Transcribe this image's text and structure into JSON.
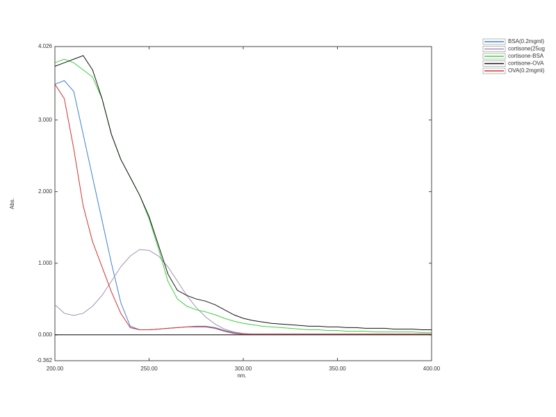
{
  "chart_data": {
    "type": "line",
    "x_label": "nm.",
    "y_label": "Abs.",
    "xlim": [
      200,
      400
    ],
    "ylim": [
      -0.362,
      4.026
    ],
    "xticks": [
      {
        "value": 200,
        "label": "200.00"
      },
      {
        "value": 250,
        "label": "250.00"
      },
      {
        "value": 300,
        "label": "300.00"
      },
      {
        "value": 350,
        "label": "350.00"
      },
      {
        "value": 400,
        "label": "400.00"
      }
    ],
    "yticks": [
      {
        "value": -0.362,
        "label": "-0.362"
      },
      {
        "value": 0,
        "label": "0.000"
      },
      {
        "value": 1,
        "label": "1.000"
      },
      {
        "value": 2,
        "label": "2.000"
      },
      {
        "value": 3,
        "label": "3.000"
      },
      {
        "value": 4.026,
        "label": "4.026"
      }
    ],
    "zero_line": true,
    "grid": false,
    "legend": "outside-top-right",
    "x": [
      200,
      205,
      210,
      215,
      220,
      225,
      230,
      235,
      240,
      245,
      250,
      255,
      260,
      265,
      270,
      275,
      280,
      285,
      290,
      295,
      300,
      305,
      310,
      315,
      320,
      325,
      330,
      335,
      340,
      345,
      350,
      355,
      360,
      365,
      370,
      375,
      380,
      385,
      390,
      395,
      400
    ],
    "series": [
      {
        "name": "BSA(0.2mgml)",
        "color": "#3a7fd0",
        "values": [
          3.5,
          3.55,
          3.4,
          2.8,
          2.2,
          1.6,
          1.0,
          0.45,
          0.12,
          0.07,
          0.07,
          0.08,
          0.09,
          0.1,
          0.11,
          0.12,
          0.12,
          0.1,
          0.06,
          0.03,
          0.01,
          0.01,
          0.01,
          0.01,
          0.01,
          0.01,
          0.01,
          0.01,
          0.01,
          0.01,
          0.01,
          0.01,
          0.01,
          0.01,
          0.01,
          0.01,
          0.01,
          0.01,
          0.01,
          0.01,
          0.01
        ]
      },
      {
        "name": "cortisone(25ug",
        "color": "#a090b0",
        "values": [
          0.42,
          0.3,
          0.27,
          0.3,
          0.4,
          0.55,
          0.75,
          0.95,
          1.1,
          1.19,
          1.18,
          1.1,
          0.95,
          0.75,
          0.55,
          0.38,
          0.25,
          0.15,
          0.08,
          0.04,
          0.02,
          0.01,
          0.01,
          0.01,
          0.01,
          0.01,
          0.01,
          0.01,
          0.01,
          0.01,
          0.01,
          0.01,
          0.01,
          0.01,
          0.01,
          0.01,
          0.01,
          0.01,
          0.01,
          0.01,
          0.01
        ]
      },
      {
        "name": "cortisone-BSA",
        "color": "#3ad03a",
        "values": [
          3.8,
          3.85,
          3.8,
          3.7,
          3.6,
          3.3,
          2.8,
          2.45,
          2.2,
          1.95,
          1.62,
          1.2,
          0.75,
          0.5,
          0.4,
          0.35,
          0.32,
          0.28,
          0.23,
          0.19,
          0.16,
          0.14,
          0.12,
          0.11,
          0.1,
          0.09,
          0.08,
          0.07,
          0.07,
          0.06,
          0.06,
          0.05,
          0.05,
          0.05,
          0.04,
          0.04,
          0.04,
          0.04,
          0.04,
          0.03,
          0.03
        ]
      },
      {
        "name": "cortisone-OVA",
        "color": "#111111",
        "values": [
          3.75,
          3.8,
          3.85,
          3.9,
          3.7,
          3.3,
          2.8,
          2.45,
          2.2,
          1.95,
          1.65,
          1.25,
          0.85,
          0.62,
          0.55,
          0.5,
          0.47,
          0.42,
          0.35,
          0.28,
          0.23,
          0.2,
          0.18,
          0.16,
          0.15,
          0.14,
          0.13,
          0.12,
          0.12,
          0.11,
          0.11,
          0.1,
          0.1,
          0.09,
          0.09,
          0.09,
          0.08,
          0.08,
          0.08,
          0.07,
          0.07
        ]
      },
      {
        "name": "OVA(0.2mgml)",
        "color": "#d03030",
        "values": [
          3.5,
          3.3,
          2.6,
          1.8,
          1.3,
          0.95,
          0.6,
          0.3,
          0.1,
          0.07,
          0.07,
          0.08,
          0.09,
          0.1,
          0.11,
          0.11,
          0.11,
          0.09,
          0.05,
          0.02,
          0.01,
          0.01,
          0.01,
          0.01,
          0.01,
          0.01,
          0.01,
          0.01,
          0.01,
          0.01,
          0.01,
          0.01,
          0.01,
          0.01,
          0.01,
          0.01,
          0.01,
          0.01,
          0.01,
          0.01,
          0.01
        ]
      }
    ]
  }
}
